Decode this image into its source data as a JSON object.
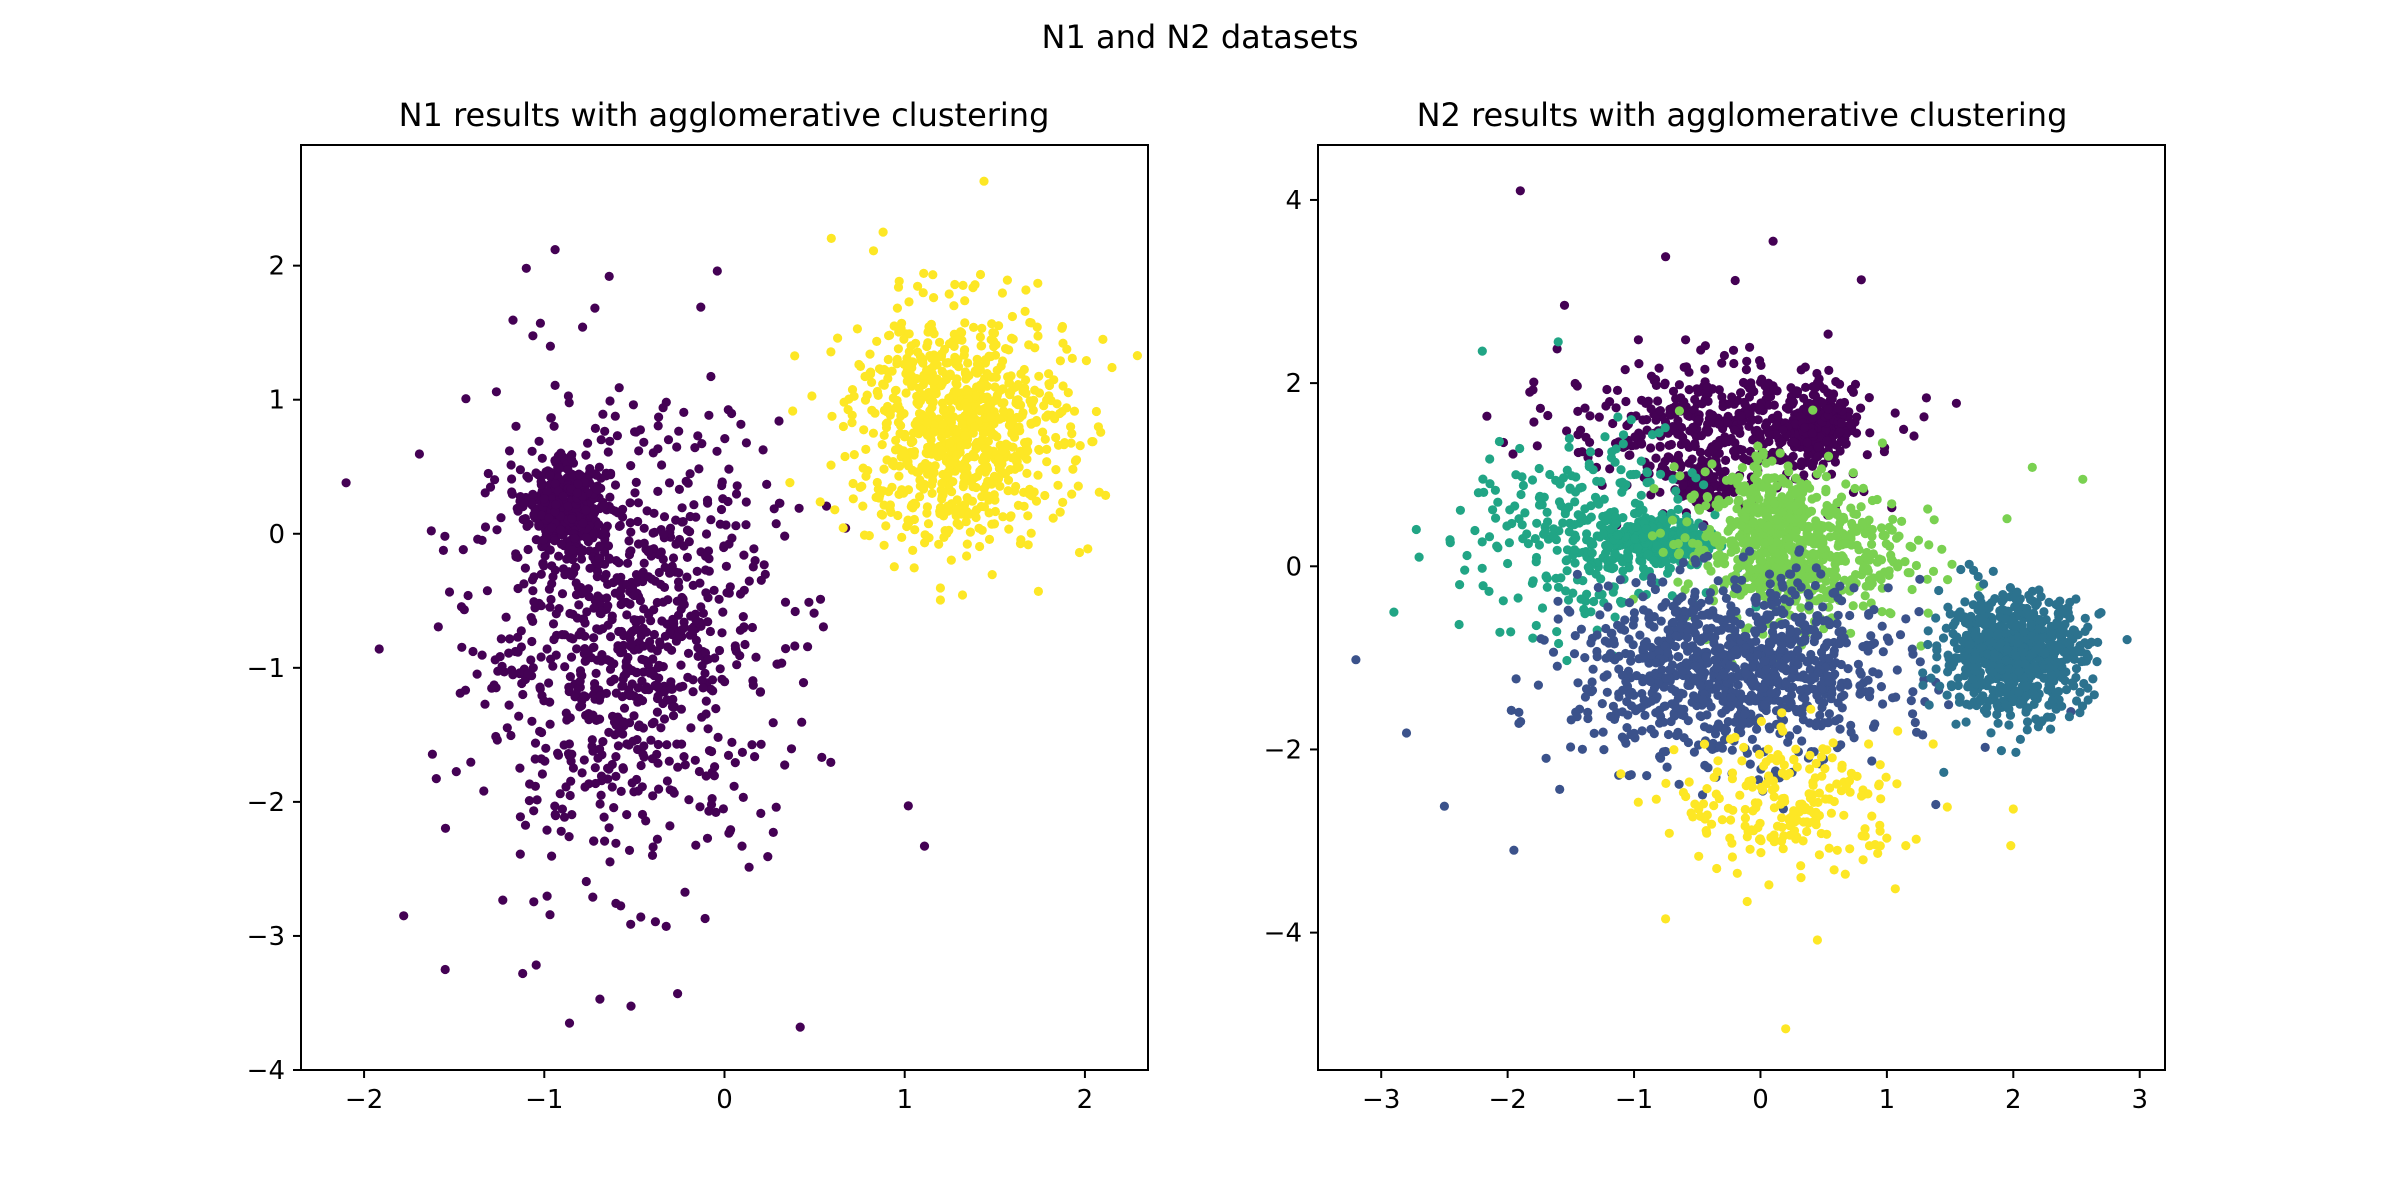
{
  "figure": {
    "suptitle": "N1 and N2 datasets"
  },
  "chart_data": [
    {
      "type": "scatter",
      "title": "N1 results with agglomerative clustering",
      "xlabel": "",
      "ylabel": "",
      "xlim": [
        -2.35,
        2.35
      ],
      "ylim": [
        -4.0,
        2.9
      ],
      "xticks": [
        -2,
        -1,
        0,
        1,
        2
      ],
      "yticks": [
        -4,
        -3,
        -2,
        -1,
        0,
        1,
        2
      ],
      "grid": false,
      "legend": "none",
      "clusters": [
        {
          "color": "#440154",
          "shape": "gaussian",
          "cx": -0.55,
          "cy": -0.75,
          "sx": 0.42,
          "sy": 0.82,
          "n": 950
        },
        {
          "color": "#440154",
          "shape": "gaussian",
          "cx": -0.88,
          "cy": 0.18,
          "sx": 0.1,
          "sy": 0.15,
          "n": 420
        },
        {
          "color": "#fde725",
          "shape": "gaussian",
          "cx": 1.3,
          "cy": 0.8,
          "sx": 0.3,
          "sy": 0.44,
          "n": 850
        }
      ],
      "points": [
        {
          "x": -2.1,
          "y": 0.38,
          "color": "#440154"
        },
        {
          "x": -0.94,
          "y": 2.12,
          "color": "#440154"
        },
        {
          "x": -1.1,
          "y": 1.98,
          "color": "#440154"
        },
        {
          "x": -0.64,
          "y": 1.92,
          "color": "#440154"
        },
        {
          "x": -0.04,
          "y": 1.96,
          "color": "#440154"
        },
        {
          "x": -0.86,
          "y": -3.65,
          "color": "#440154"
        },
        {
          "x": -0.26,
          "y": -3.43,
          "color": "#440154"
        },
        {
          "x": 0.42,
          "y": -3.68,
          "color": "#440154"
        },
        {
          "x": 1.02,
          "y": -2.03,
          "color": "#440154"
        },
        {
          "x": 1.11,
          "y": -2.33,
          "color": "#440154"
        },
        {
          "x": -1.55,
          "y": -3.25,
          "color": "#440154"
        },
        {
          "x": -1.78,
          "y": -2.85,
          "color": "#440154"
        },
        {
          "x": -1.12,
          "y": -3.28,
          "color": "#440154"
        },
        {
          "x": 1.44,
          "y": 2.63,
          "color": "#fde725"
        },
        {
          "x": 2.15,
          "y": 1.24,
          "color": "#fde725"
        },
        {
          "x": 2.1,
          "y": 1.45,
          "color": "#fde725"
        },
        {
          "x": 1.97,
          "y": -0.14,
          "color": "#fde725"
        },
        {
          "x": 2.08,
          "y": 0.31,
          "color": "#fde725"
        },
        {
          "x": 0.88,
          "y": 2.25,
          "color": "#fde725"
        }
      ]
    },
    {
      "type": "scatter",
      "title": "N2 results with agglomerative clustering",
      "xlabel": "",
      "ylabel": "",
      "xlim": [
        -3.5,
        3.2
      ],
      "ylim": [
        -5.5,
        4.6
      ],
      "xticks": [
        -3,
        -2,
        -1,
        0,
        1,
        2,
        3
      ],
      "yticks": [
        -4,
        -2,
        0,
        2,
        4
      ],
      "grid": false,
      "legend": "none",
      "clusters": [
        {
          "color": "#440154",
          "shape": "gaussian",
          "cx": -0.35,
          "cy": 1.5,
          "sx": 0.6,
          "sy": 0.38,
          "n": 450
        },
        {
          "color": "#440154",
          "shape": "gaussian",
          "cx": 0.45,
          "cy": 1.55,
          "sx": 0.14,
          "sy": 0.16,
          "n": 230
        },
        {
          "color": "#440154",
          "shape": "gaussian",
          "cx": -0.45,
          "cy": 0.9,
          "sx": 0.12,
          "sy": 0.12,
          "n": 100
        },
        {
          "color": "#21a585",
          "shape": "gaussian",
          "cx": -1.4,
          "cy": 0.3,
          "sx": 0.45,
          "sy": 0.55,
          "n": 280
        },
        {
          "color": "#21a585",
          "shape": "gaussian",
          "cx": -0.8,
          "cy": 0.28,
          "sx": 0.22,
          "sy": 0.14,
          "n": 300
        },
        {
          "color": "#7ad151",
          "shape": "gaussian",
          "cx": 0.25,
          "cy": 0.2,
          "sx": 0.45,
          "sy": 0.42,
          "n": 550
        },
        {
          "color": "#7ad151",
          "shape": "gaussian",
          "cx": 0.05,
          "cy": 0.45,
          "sx": 0.16,
          "sy": 0.35,
          "n": 250
        },
        {
          "color": "#3b528b",
          "shape": "gaussian",
          "cx": -0.2,
          "cy": -1.15,
          "sx": 0.62,
          "sy": 0.48,
          "n": 1000
        },
        {
          "color": "#2c728e",
          "shape": "gaussian",
          "cx": 2.0,
          "cy": -0.95,
          "sx": 0.28,
          "sy": 0.32,
          "n": 800
        },
        {
          "color": "#fde725",
          "shape": "gaussian",
          "cx": 0.25,
          "cy": -2.6,
          "sx": 0.45,
          "sy": 0.38,
          "n": 220
        }
      ],
      "points": [
        {
          "x": -1.9,
          "y": 4.1,
          "color": "#440154"
        },
        {
          "x": -0.75,
          "y": 3.38,
          "color": "#440154"
        },
        {
          "x": 0.1,
          "y": 3.55,
          "color": "#440154"
        },
        {
          "x": -0.2,
          "y": 3.12,
          "color": "#440154"
        },
        {
          "x": -1.55,
          "y": 2.85,
          "color": "#440154"
        },
        {
          "x": 1.55,
          "y": 1.78,
          "color": "#440154"
        },
        {
          "x": -3.2,
          "y": -1.02,
          "color": "#3b528b"
        },
        {
          "x": -2.8,
          "y": -1.82,
          "color": "#3b528b"
        },
        {
          "x": -2.5,
          "y": -2.62,
          "color": "#3b528b"
        },
        {
          "x": -1.95,
          "y": -3.1,
          "color": "#3b528b"
        },
        {
          "x": -2.9,
          "y": -0.5,
          "color": "#21a585"
        },
        {
          "x": -2.2,
          "y": 2.35,
          "color": "#21a585"
        },
        {
          "x": -1.6,
          "y": 2.45,
          "color": "#21a585"
        },
        {
          "x": -2.7,
          "y": 0.1,
          "color": "#21a585"
        },
        {
          "x": 2.15,
          "y": 1.08,
          "color": "#7ad151"
        },
        {
          "x": 2.55,
          "y": 0.95,
          "color": "#7ad151"
        },
        {
          "x": 1.95,
          "y": 0.52,
          "color": "#7ad151"
        },
        {
          "x": 2.9,
          "y": -0.8,
          "color": "#2c728e"
        },
        {
          "x": 1.45,
          "y": -2.25,
          "color": "#2c728e"
        },
        {
          "x": 0.2,
          "y": -5.05,
          "color": "#fde725"
        },
        {
          "x": 2.0,
          "y": -2.65,
          "color": "#fde725"
        },
        {
          "x": 1.98,
          "y": -3.05,
          "color": "#fde725"
        },
        {
          "x": 0.45,
          "y": -4.08,
          "color": "#fde725"
        },
        {
          "x": -0.75,
          "y": -3.85,
          "color": "#fde725"
        },
        {
          "x": 1.15,
          "y": -3.05,
          "color": "#fde725"
        }
      ]
    }
  ]
}
